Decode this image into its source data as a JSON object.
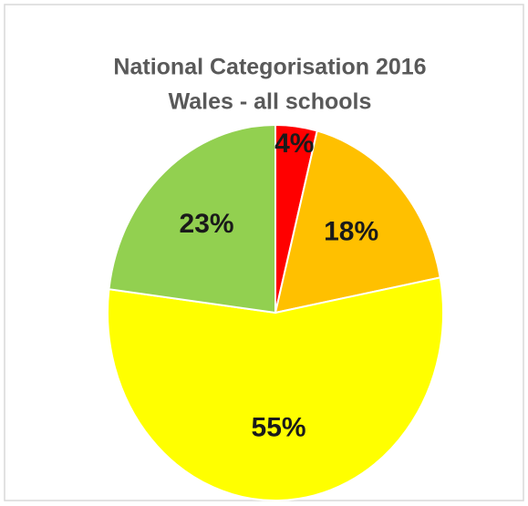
{
  "chart_data": {
    "type": "pie",
    "title": [
      "National Categorisation 2016",
      "Wales - all schools"
    ],
    "values": [
      4,
      18,
      55,
      23
    ],
    "value_labels": [
      "4%",
      "18%",
      "55%",
      "23%"
    ],
    "colors": [
      "#ff0000",
      "#ffc000",
      "#ffff00",
      "#92d050"
    ]
  }
}
